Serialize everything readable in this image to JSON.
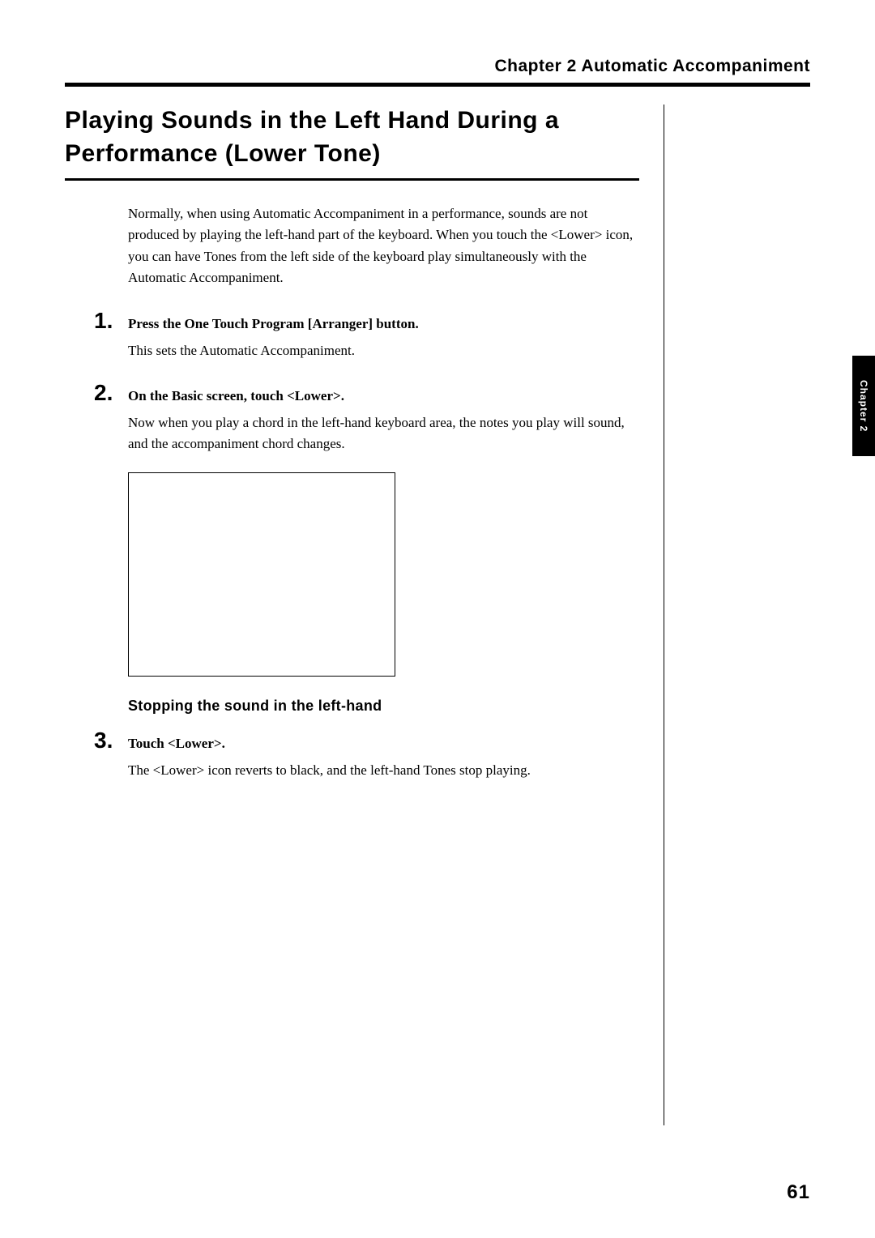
{
  "header": {
    "chapter_label": "Chapter 2 Automatic Accompaniment"
  },
  "section": {
    "title": "Playing Sounds in the Left Hand During a Performance (Lower Tone)",
    "intro": "Normally, when using Automatic Accompaniment in a performance, sounds are not produced by playing the left-hand part of the keyboard. When you touch the <Lower> icon, you can have Tones from the left side of the keyboard play simultaneously with the Automatic Accompaniment."
  },
  "steps": [
    {
      "num": "1.",
      "head": "Press the One Touch Program [Arranger] button.",
      "body": "This sets the Automatic Accompaniment."
    },
    {
      "num": "2.",
      "head": "On the Basic screen, touch <Lower>.",
      "body": "Now when you play a chord in the left-hand keyboard area, the notes you play will sound, and the accompaniment chord changes."
    },
    {
      "num": "3.",
      "head": "Touch <Lower>.",
      "body": "The <Lower> icon reverts to black, and the left-hand Tones stop playing."
    }
  ],
  "sub_heading": "Stopping the sound in the left-hand",
  "side_tab": "Chapter 2",
  "page_num": "61",
  "styles": {
    "page_bg": "#ffffff",
    "text_color": "#000000",
    "tab_bg": "#000000",
    "tab_fg": "#ffffff"
  }
}
